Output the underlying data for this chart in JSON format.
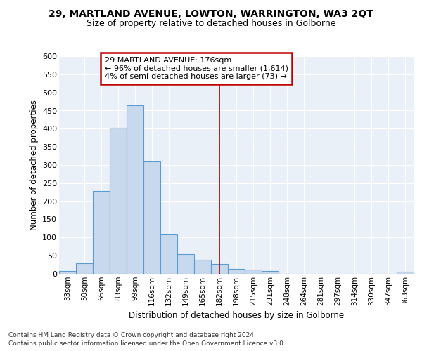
{
  "title1": "29, MARTLAND AVENUE, LOWTON, WARRINGTON, WA3 2QT",
  "title2": "Size of property relative to detached houses in Golborne",
  "xlabel": "Distribution of detached houses by size in Golborne",
  "ylabel": "Number of detached properties",
  "categories": [
    "33sqm",
    "50sqm",
    "66sqm",
    "83sqm",
    "99sqm",
    "116sqm",
    "132sqm",
    "149sqm",
    "165sqm",
    "182sqm",
    "198sqm",
    "215sqm",
    "231sqm",
    "248sqm",
    "264sqm",
    "281sqm",
    "297sqm",
    "314sqm",
    "330sqm",
    "347sqm",
    "363sqm"
  ],
  "values": [
    7,
    30,
    228,
    403,
    465,
    310,
    108,
    54,
    39,
    27,
    14,
    12,
    8,
    0,
    0,
    0,
    0,
    0,
    0,
    0,
    5
  ],
  "bar_color": "#c9d9ed",
  "bar_edge_color": "#5b9bd5",
  "vline_color": "#a00000",
  "annotation_title": "29 MARTLAND AVENUE: 176sqm",
  "annotation_line1": "← 96% of detached houses are smaller (1,614)",
  "annotation_line2": "4% of semi-detached houses are larger (73) →",
  "annotation_box_edge": "#c00000",
  "ylim": [
    0,
    600
  ],
  "yticks": [
    0,
    50,
    100,
    150,
    200,
    250,
    300,
    350,
    400,
    450,
    500,
    550,
    600
  ],
  "footnote1": "Contains HM Land Registry data © Crown copyright and database right 2024.",
  "footnote2": "Contains public sector information licensed under the Open Government Licence v3.0.",
  "bg_color": "#eaf0f8",
  "fig_bg": "#ffffff"
}
